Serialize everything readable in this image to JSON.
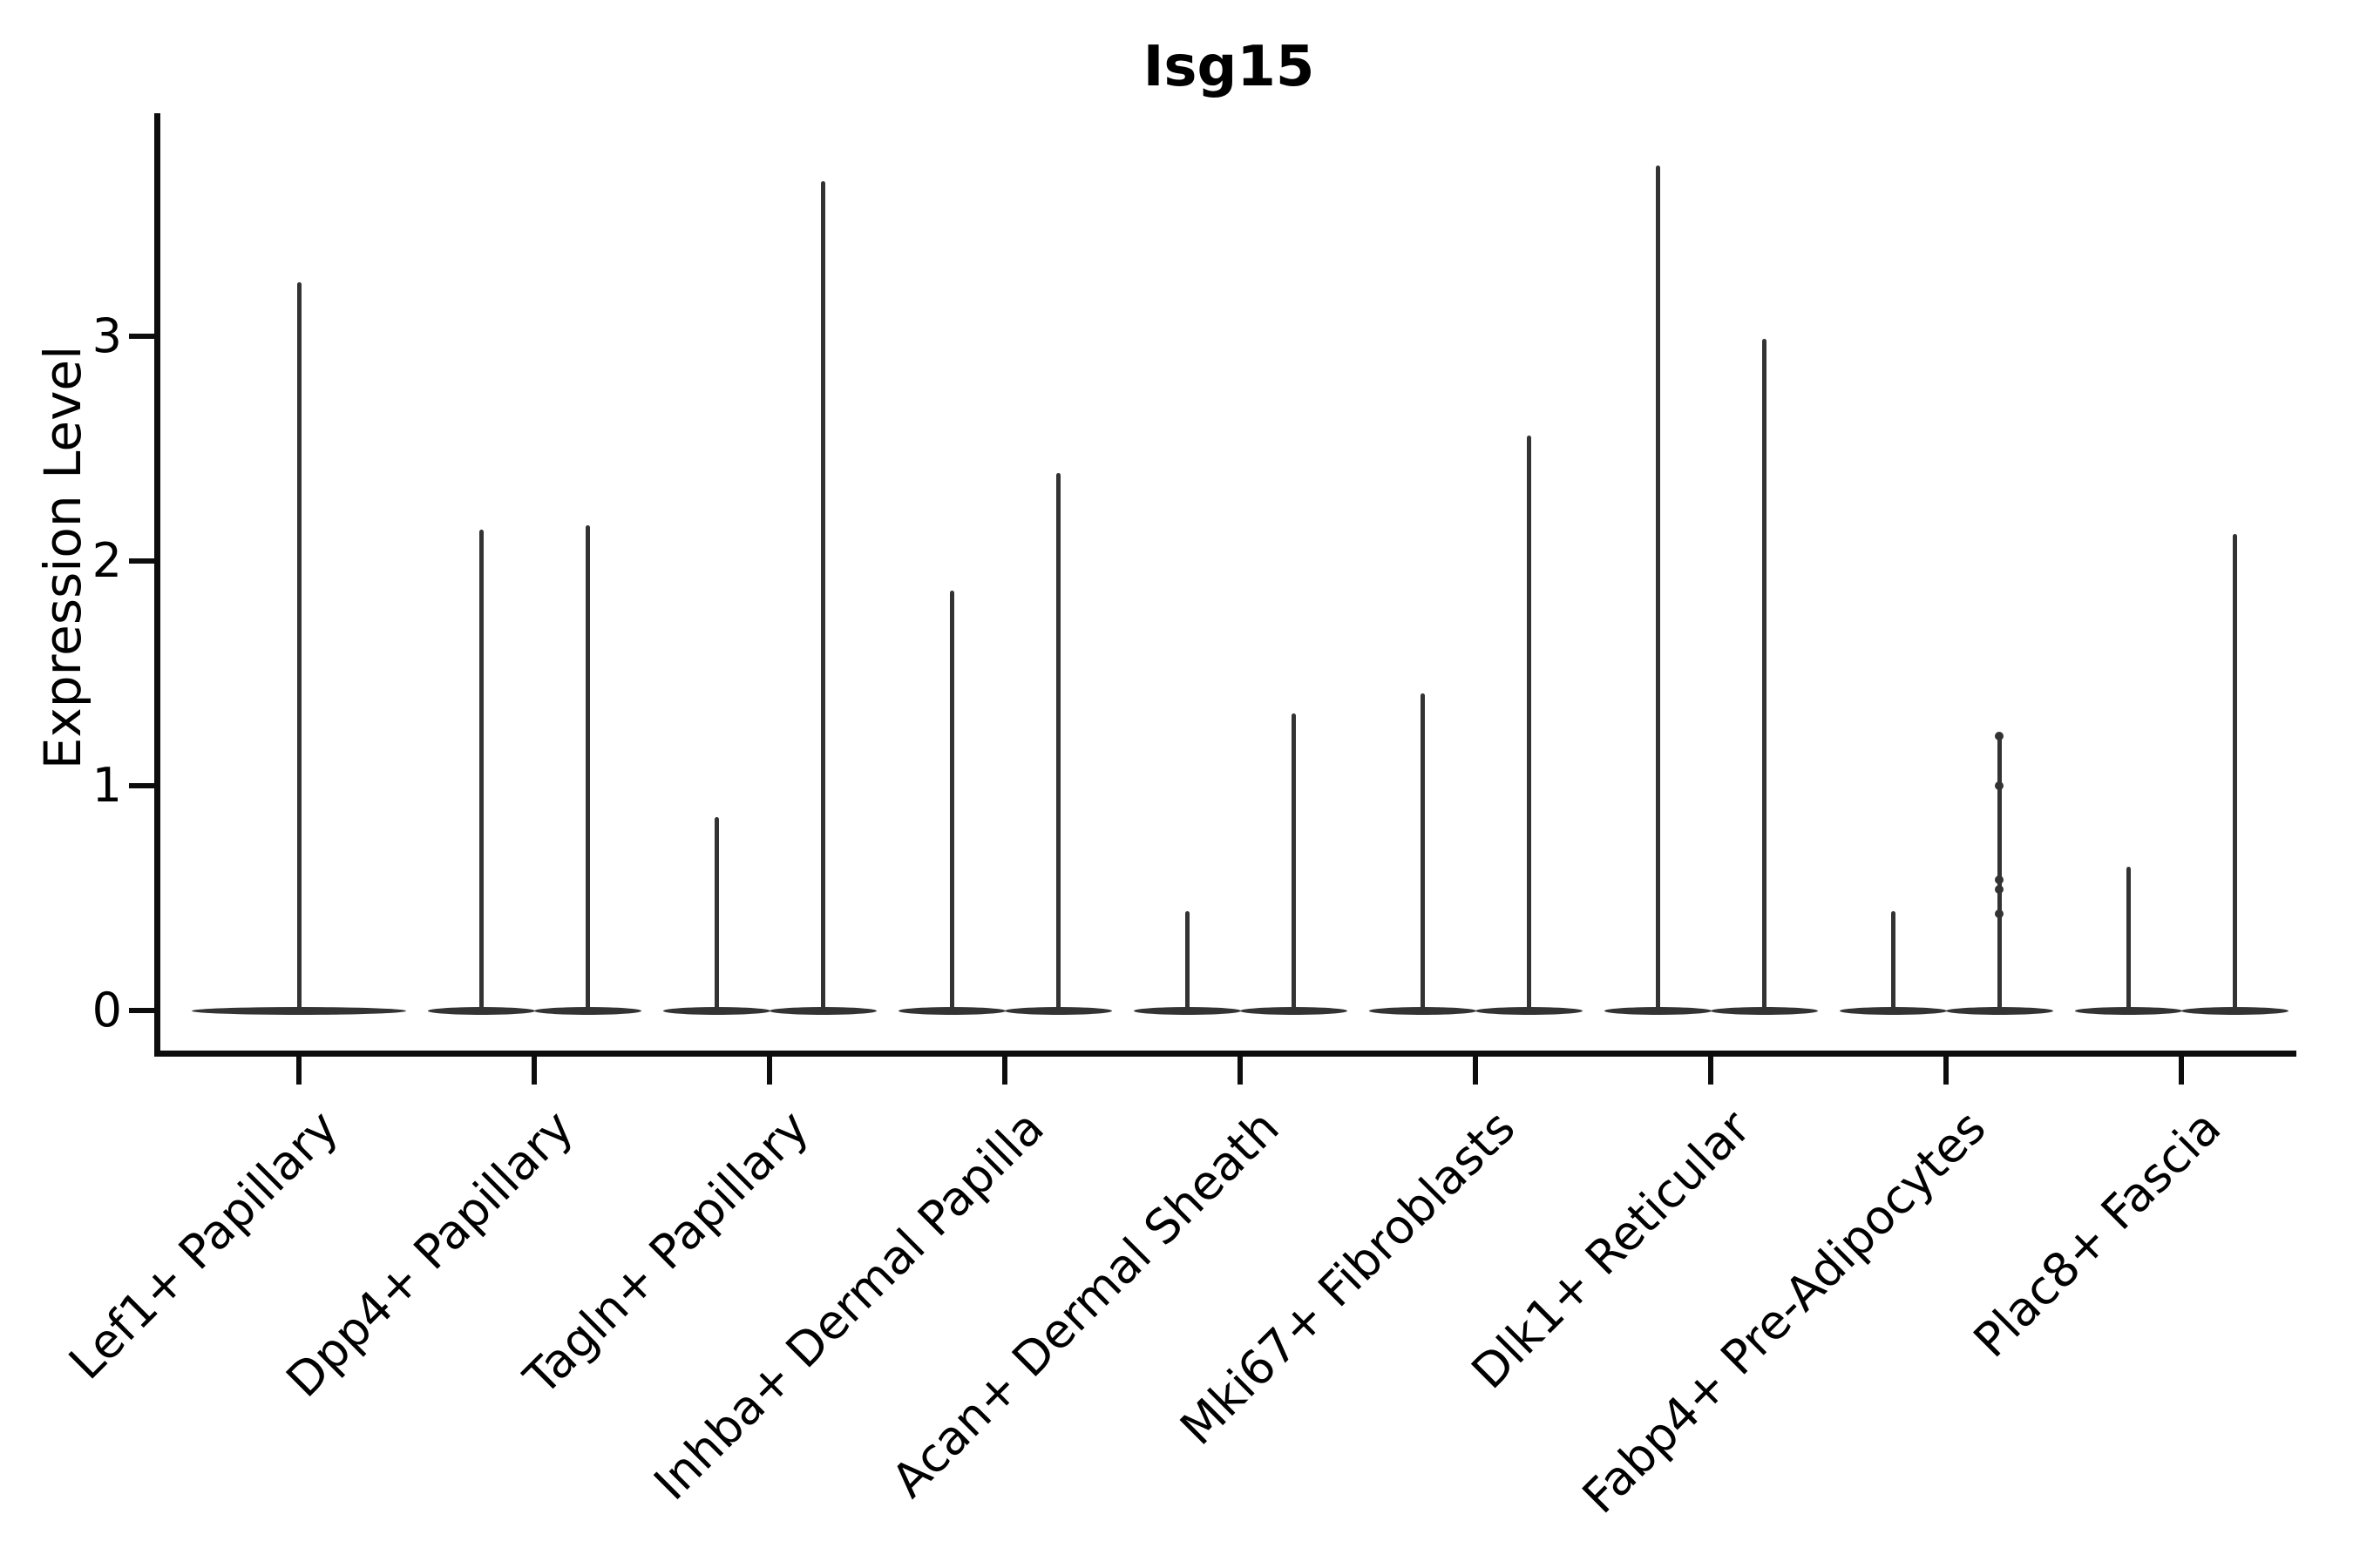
{
  "chart_data": {
    "type": "violin",
    "title": "Isg15",
    "ylabel": "Expression Level",
    "xlabel": "",
    "yticks": [
      0,
      1,
      2,
      3
    ],
    "ylim": [
      0,
      3.97
    ],
    "grid": false,
    "legend": "none",
    "accent_color": "#333333",
    "categories": [
      "Lef1+ Papillary",
      "Dpp4+ Papillary",
      "Tagln+ Papillary",
      "Inhba+ Dermal Papilla",
      "Acan+ Dermal Sheath",
      "Mki67+ Fibroblasts",
      "Dlk1+ Reticular",
      "Fabp4+ Pre-Adipocytes",
      "Plac8+ Fascia"
    ],
    "violins": [
      {
        "category": "Lef1+ Papillary",
        "spikes": [
          {
            "max": 3.24
          }
        ]
      },
      {
        "category": "Dpp4+ Papillary",
        "spikes": [
          {
            "max": 2.14
          },
          {
            "max": 2.16
          }
        ]
      },
      {
        "category": "Tagln+ Papillary",
        "spikes": [
          {
            "max": 0.86
          },
          {
            "max": 3.69
          }
        ]
      },
      {
        "category": "Inhba+ Dermal Papilla",
        "spikes": [
          {
            "max": 1.87
          },
          {
            "max": 2.39
          }
        ]
      },
      {
        "category": "Acan+ Dermal Sheath",
        "spikes": [
          {
            "max": 0.44
          },
          {
            "max": 1.32
          }
        ]
      },
      {
        "category": "Mki67+ Fibroblasts",
        "spikes": [
          {
            "max": 1.41
          },
          {
            "max": 2.56
          }
        ]
      },
      {
        "category": "Dlk1+ Reticular",
        "spikes": [
          {
            "max": 3.76
          },
          {
            "max": 2.99
          }
        ]
      },
      {
        "category": "Fabp4+ Pre-Adipocytes",
        "spikes": [
          {
            "max": 0.44
          },
          {
            "max": 1.22,
            "points": [
              1.22,
              1.0,
              0.58,
              0.54,
              0.43
            ]
          }
        ]
      },
      {
        "category": "Plac8+ Fascia",
        "spikes": [
          {
            "max": 0.64
          },
          {
            "max": 2.12
          }
        ]
      }
    ]
  }
}
